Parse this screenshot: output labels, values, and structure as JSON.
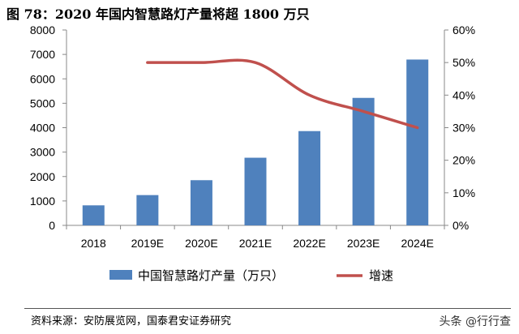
{
  "title": "图 78：2020 年国内智慧路灯产量将超 1800 万只",
  "source": "资料来源：安防展览网，国泰君安证券研究",
  "watermark": "头条 @行行查",
  "chart_data": {
    "type": "bar",
    "title": "图 78：2020 年国内智慧路灯产量将超 1800 万只",
    "categories": [
      "2018",
      "2019E",
      "2020E",
      "2021E",
      "2022E",
      "2023E",
      "2024E"
    ],
    "series": [
      {
        "name": "中国智慧路灯产量（万只）",
        "type": "bar",
        "axis": "left",
        "color": "#4F81BD",
        "values": [
          820,
          1240,
          1850,
          2770,
          3860,
          5220,
          6790
        ]
      },
      {
        "name": "增速",
        "type": "line",
        "axis": "right",
        "color": "#C0504D",
        "values": [
          null,
          0.5,
          0.5,
          0.5,
          0.4,
          0.35,
          0.3
        ]
      }
    ],
    "ylim": [
      0,
      8000
    ],
    "yticks": [
      "0",
      "1000",
      "2000",
      "3000",
      "4000",
      "5000",
      "6000",
      "7000",
      "8000"
    ],
    "y2lim": [
      0,
      0.6
    ],
    "y2ticks": [
      "0%",
      "10%",
      "20%",
      "30%",
      "40%",
      "50%",
      "60%"
    ],
    "grid": false,
    "legend": "bottom"
  }
}
